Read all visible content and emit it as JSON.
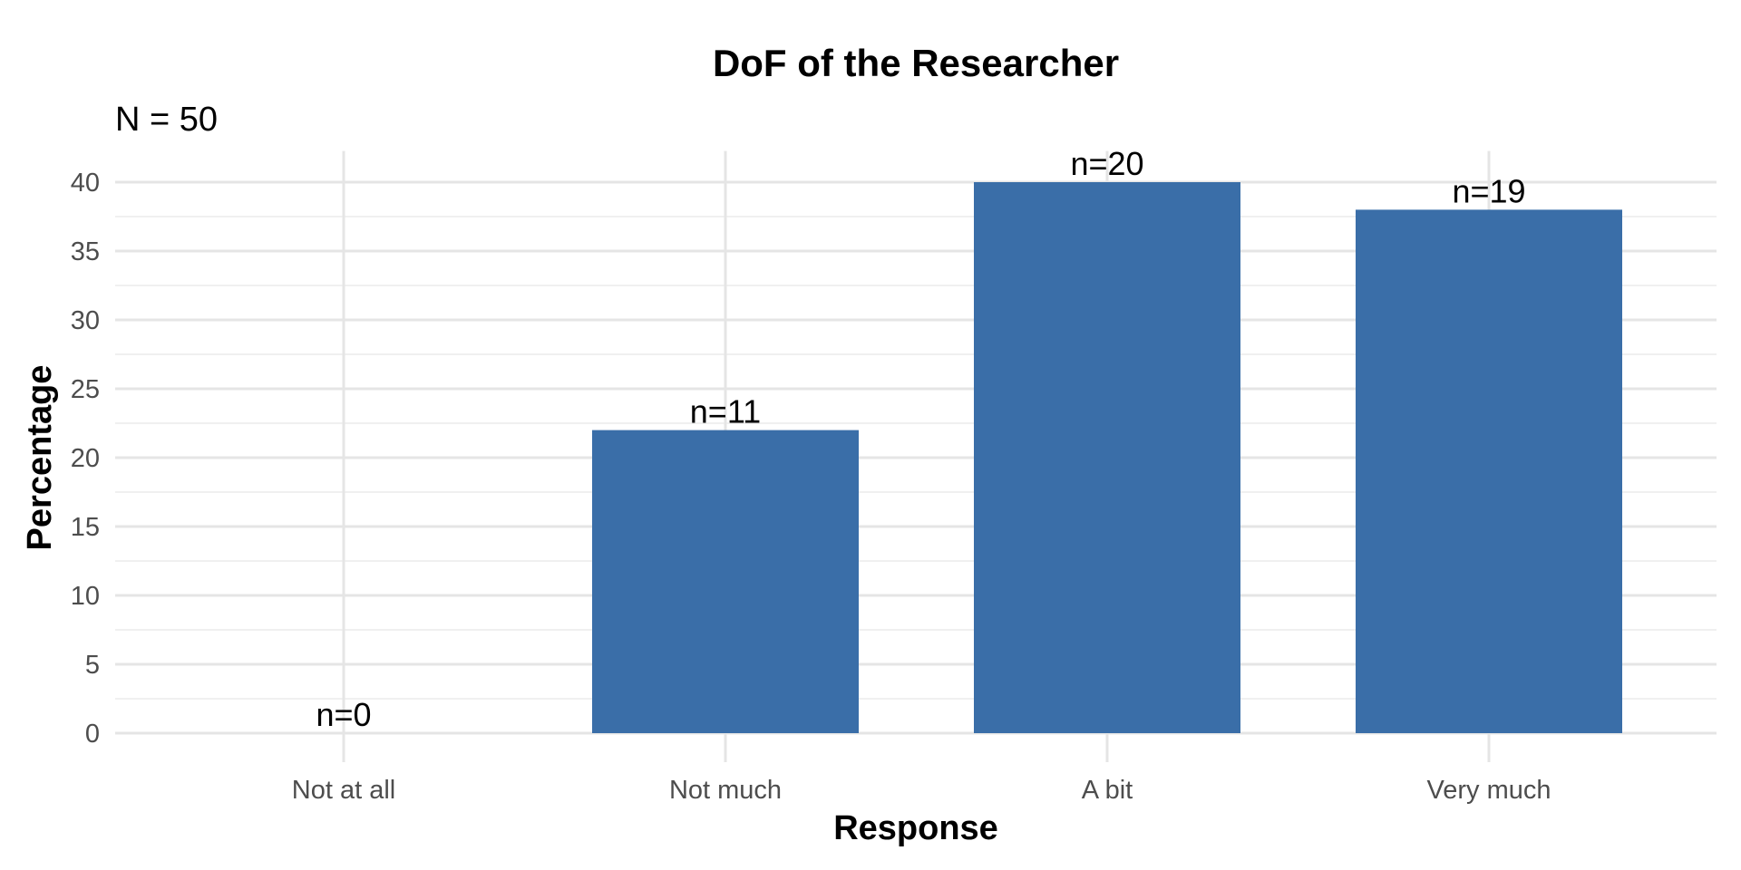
{
  "chart_data": {
    "type": "bar",
    "title": "DoF of the Researcher",
    "subtitle": "N = 50",
    "xlabel": "Response",
    "ylabel": "Percentage",
    "categories": [
      "Not at all",
      "Not much",
      "A bit",
      "Very much"
    ],
    "values": [
      0,
      22,
      40,
      38
    ],
    "data_labels": [
      "n=0",
      "n=11",
      "n=20",
      "n=19"
    ],
    "ylim": [
      0,
      42
    ],
    "yticks": [
      0,
      5,
      10,
      15,
      20,
      25,
      30,
      35,
      40
    ],
    "grid": true,
    "bar_color": "#3A6EA8",
    "legend": "none"
  }
}
